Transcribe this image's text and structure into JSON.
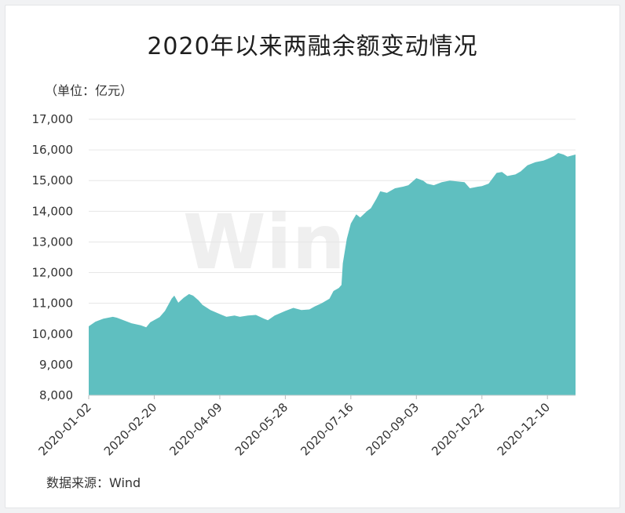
{
  "chart_data": {
    "type": "area",
    "title": "2020年以来两融余额变动情况",
    "unit_label": "（单位：亿元）",
    "source": "数据来源：Wind",
    "watermark": "Win.d",
    "ylim": [
      8000,
      17000
    ],
    "yticks": [
      "8,000",
      "9,000",
      "10,000",
      "11,000",
      "12,000",
      "13,000",
      "14,000",
      "15,000",
      "16,000",
      "17,000"
    ],
    "xtick_labels": [
      "2020-01-02",
      "2020-02-20",
      "2020-04-09",
      "2020-05-28",
      "2020-07-16",
      "2020-09-03",
      "2020-10-22",
      "2020-12-10"
    ],
    "grid": true,
    "fill_color": "#5fbfc0",
    "series": [
      {
        "points": [
          [
            "2020-01-02",
            10250
          ],
          [
            "2020-01-07",
            10400
          ],
          [
            "2020-01-13",
            10500
          ],
          [
            "2020-01-20",
            10560
          ],
          [
            "2020-01-23",
            10530
          ],
          [
            "2020-02-03",
            10350
          ],
          [
            "2020-02-10",
            10280
          ],
          [
            "2020-02-14",
            10220
          ],
          [
            "2020-02-17",
            10380
          ],
          [
            "2020-02-24",
            10550
          ],
          [
            "2020-02-28",
            10750
          ],
          [
            "2020-03-04",
            11150
          ],
          [
            "2020-03-06",
            11250
          ],
          [
            "2020-03-09",
            11020
          ],
          [
            "2020-03-13",
            11180
          ],
          [
            "2020-03-17",
            11300
          ],
          [
            "2020-03-20",
            11250
          ],
          [
            "2020-03-24",
            11100
          ],
          [
            "2020-03-27",
            10950
          ],
          [
            "2020-04-02",
            10780
          ],
          [
            "2020-04-09",
            10650
          ],
          [
            "2020-04-14",
            10560
          ],
          [
            "2020-04-20",
            10600
          ],
          [
            "2020-04-24",
            10560
          ],
          [
            "2020-04-30",
            10600
          ],
          [
            "2020-05-06",
            10620
          ],
          [
            "2020-05-12",
            10500
          ],
          [
            "2020-05-15",
            10450
          ],
          [
            "2020-05-20",
            10600
          ],
          [
            "2020-05-28",
            10750
          ],
          [
            "2020-06-03",
            10850
          ],
          [
            "2020-06-09",
            10780
          ],
          [
            "2020-06-15",
            10800
          ],
          [
            "2020-06-19",
            10900
          ],
          [
            "2020-06-24",
            11000
          ],
          [
            "2020-06-30",
            11150
          ],
          [
            "2020-07-03",
            11400
          ],
          [
            "2020-07-07",
            11500
          ],
          [
            "2020-07-09",
            11600
          ],
          [
            "2020-07-10",
            12300
          ],
          [
            "2020-07-13",
            13100
          ],
          [
            "2020-07-16",
            13600
          ],
          [
            "2020-07-20",
            13900
          ],
          [
            "2020-07-23",
            13800
          ],
          [
            "2020-07-28",
            14000
          ],
          [
            "2020-07-31",
            14100
          ],
          [
            "2020-08-04",
            14400
          ],
          [
            "2020-08-07",
            14650
          ],
          [
            "2020-08-12",
            14600
          ],
          [
            "2020-08-18",
            14750
          ],
          [
            "2020-08-24",
            14800
          ],
          [
            "2020-08-28",
            14850
          ],
          [
            "2020-09-03",
            15080
          ],
          [
            "2020-09-08",
            15000
          ],
          [
            "2020-09-11",
            14900
          ],
          [
            "2020-09-16",
            14850
          ],
          [
            "2020-09-22",
            14950
          ],
          [
            "2020-09-28",
            15000
          ],
          [
            "2020-10-09",
            14950
          ],
          [
            "2020-10-13",
            14750
          ],
          [
            "2020-10-19",
            14800
          ],
          [
            "2020-10-22",
            14820
          ],
          [
            "2020-10-27",
            14900
          ],
          [
            "2020-11-02",
            15250
          ],
          [
            "2020-11-06",
            15280
          ],
          [
            "2020-11-10",
            15150
          ],
          [
            "2020-11-16",
            15200
          ],
          [
            "2020-11-20",
            15300
          ],
          [
            "2020-11-25",
            15500
          ],
          [
            "2020-12-01",
            15600
          ],
          [
            "2020-12-07",
            15650
          ],
          [
            "2020-12-10",
            15700
          ],
          [
            "2020-12-15",
            15800
          ],
          [
            "2020-12-18",
            15900
          ],
          [
            "2020-12-22",
            15850
          ],
          [
            "2020-12-25",
            15780
          ],
          [
            "2020-12-31",
            15850
          ]
        ]
      }
    ]
  }
}
